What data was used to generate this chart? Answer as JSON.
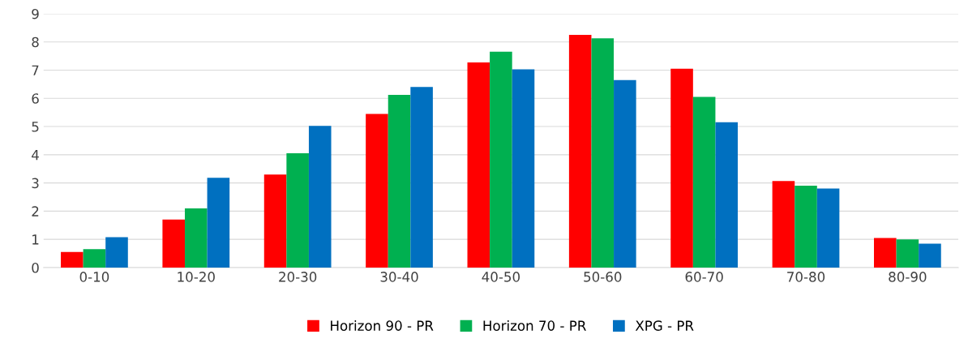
{
  "chart_data": {
    "type": "bar",
    "categories": [
      "0-10",
      "10-20",
      "20-30",
      "30-40",
      "40-50",
      "50-60",
      "60-70",
      "70-80",
      "80-90"
    ],
    "series": [
      {
        "name": "Horizon 90 - PR",
        "color": "#ff0000",
        "values": [
          0.55,
          1.7,
          3.3,
          5.45,
          7.27,
          8.25,
          7.05,
          3.07,
          1.05
        ]
      },
      {
        "name": "Horizon 70 - PR",
        "color": "#00b050",
        "values": [
          0.65,
          2.1,
          4.05,
          6.12,
          7.65,
          8.13,
          6.05,
          2.9,
          1.0
        ]
      },
      {
        "name": "XPG - PR",
        "color": "#0070c0",
        "values": [
          1.08,
          3.18,
          5.02,
          6.4,
          7.03,
          6.65,
          5.15,
          2.8,
          0.85
        ]
      }
    ],
    "ylim": [
      0,
      9
    ],
    "yticks": [
      0,
      1,
      2,
      3,
      4,
      5,
      6,
      7,
      8,
      9
    ],
    "grid": "y",
    "legend": "bottom"
  }
}
